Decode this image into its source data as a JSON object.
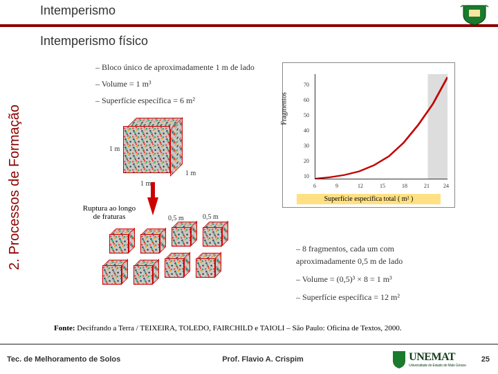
{
  "header": {
    "title": "Intemperismo",
    "subtitle": "Intemperismo físico",
    "rule_color": "#8b0000"
  },
  "sidebar": {
    "label": "2. Processos de Formação",
    "color": "#8b0000"
  },
  "bullets_top": [
    "– Bloco único de aproximadamente 1 m de lado",
    "– Volume = 1 m³",
    "– Superfície específica = 6 m²"
  ],
  "bullets_bottom": [
    "– 8 fragmentos, cada um com aproximadamente 0,5 m de lado",
    "– Volume = (0,5)³ × 8 = 1 m³",
    "– Superfície específica = 12 m²"
  ],
  "diagram": {
    "big_cube_dim": "1 m",
    "small_cube_dim": "0,5 m",
    "rupture_label": "Ruptura ao longo de fraturas",
    "arrow_color": "#c00000",
    "cube_border_color": "#c00000"
  },
  "chart": {
    "type": "line",
    "xlabel": "Superfície específica total ( m² )",
    "ylabel": "Fragmentos",
    "line_color": "#c00000",
    "background_color": "#ffffff",
    "xlim": [
      6,
      24
    ],
    "ylim": [
      0,
      70
    ],
    "xticks": [
      6,
      9,
      12,
      15,
      18,
      21,
      24
    ],
    "yticks": [
      10,
      20,
      30,
      40,
      50,
      60,
      70
    ],
    "points_x": [
      6,
      8,
      10,
      12,
      14,
      16,
      18,
      20,
      22,
      24
    ],
    "points_y": [
      0,
      1,
      2.5,
      5,
      9,
      15,
      24,
      36,
      50,
      68
    ],
    "xlabel_bg": "#ffe082"
  },
  "fonte": "Fonte: Decifrando a Terra / TEIXEIRA, TOLEDO, FAIRCHILD e TAIOLI – São Paulo: Oficina de Textos, 2000.",
  "footer": {
    "left": "Tec. de Melhoramento de Solos",
    "center": "Prof. Flavio A. Crispim",
    "logo_text": "UNEMAT",
    "logo_sub": "Universidade do Estado de Mato Grosso",
    "page": "25"
  }
}
